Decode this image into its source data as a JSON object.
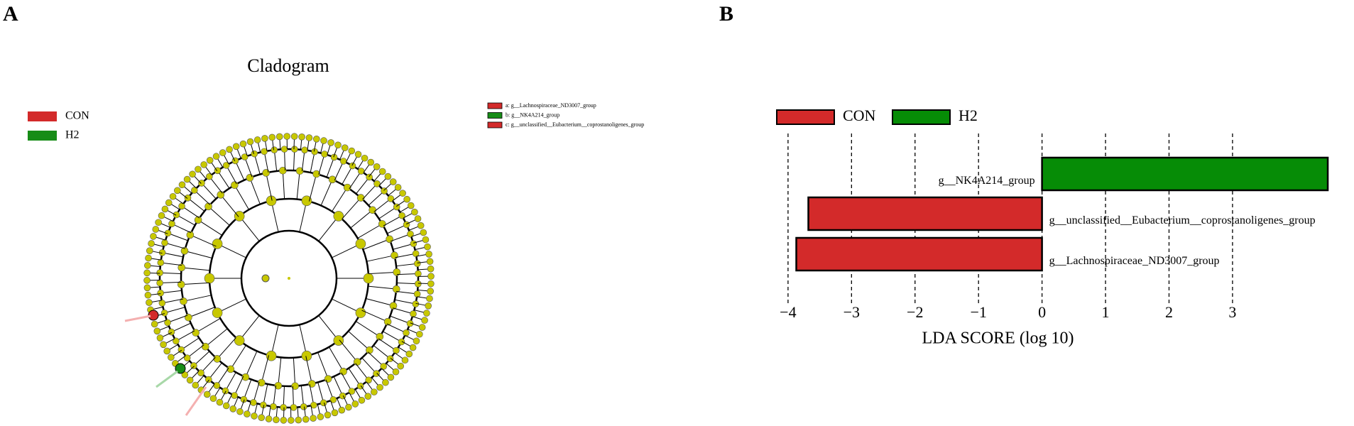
{
  "panel_labels": [
    "A",
    "B"
  ],
  "cladogram": {
    "title": "Cladogram",
    "legend": [
      {
        "name": "CON",
        "color": "#d32a2a"
      },
      {
        "name": "H2",
        "color": "#178c17"
      }
    ],
    "key": [
      {
        "label": "a: g__Lachnospiraceae_ND3007_group",
        "color": "#d32a2a"
      },
      {
        "label": "b: g__NK4A214_group",
        "color": "#178c17"
      },
      {
        "label": "c: g__unclassified__Eubacterium__coprostanoligenes_group",
        "color": "#d32a2a"
      }
    ]
  },
  "chart_data": {
    "type": "bar",
    "orientation": "horizontal",
    "xlabel": "LDA SCORE (log 10)",
    "categories": [
      "g__NK4A214_group",
      "g__unclassified__Eubacterium__coprostanoligenes_group",
      "g__Lachnospiraceae_ND3007_group"
    ],
    "series": [
      {
        "name": "CON",
        "color": "#d32a2a",
        "values": [
          null,
          -3.68,
          -3.87
        ]
      },
      {
        "name": "H2",
        "color": "#068c06",
        "values": [
          4.5,
          null,
          null
        ]
      }
    ],
    "xlim": [
      -4.2,
      4.6
    ],
    "xticks": [
      {
        "value": -4,
        "label": "−4"
      },
      {
        "value": -3,
        "label": "−3"
      },
      {
        "value": -2,
        "label": "−2"
      },
      {
        "value": -1,
        "label": "−1"
      },
      0,
      1,
      2,
      3
    ],
    "grid": true,
    "legend_position": "top-left"
  }
}
